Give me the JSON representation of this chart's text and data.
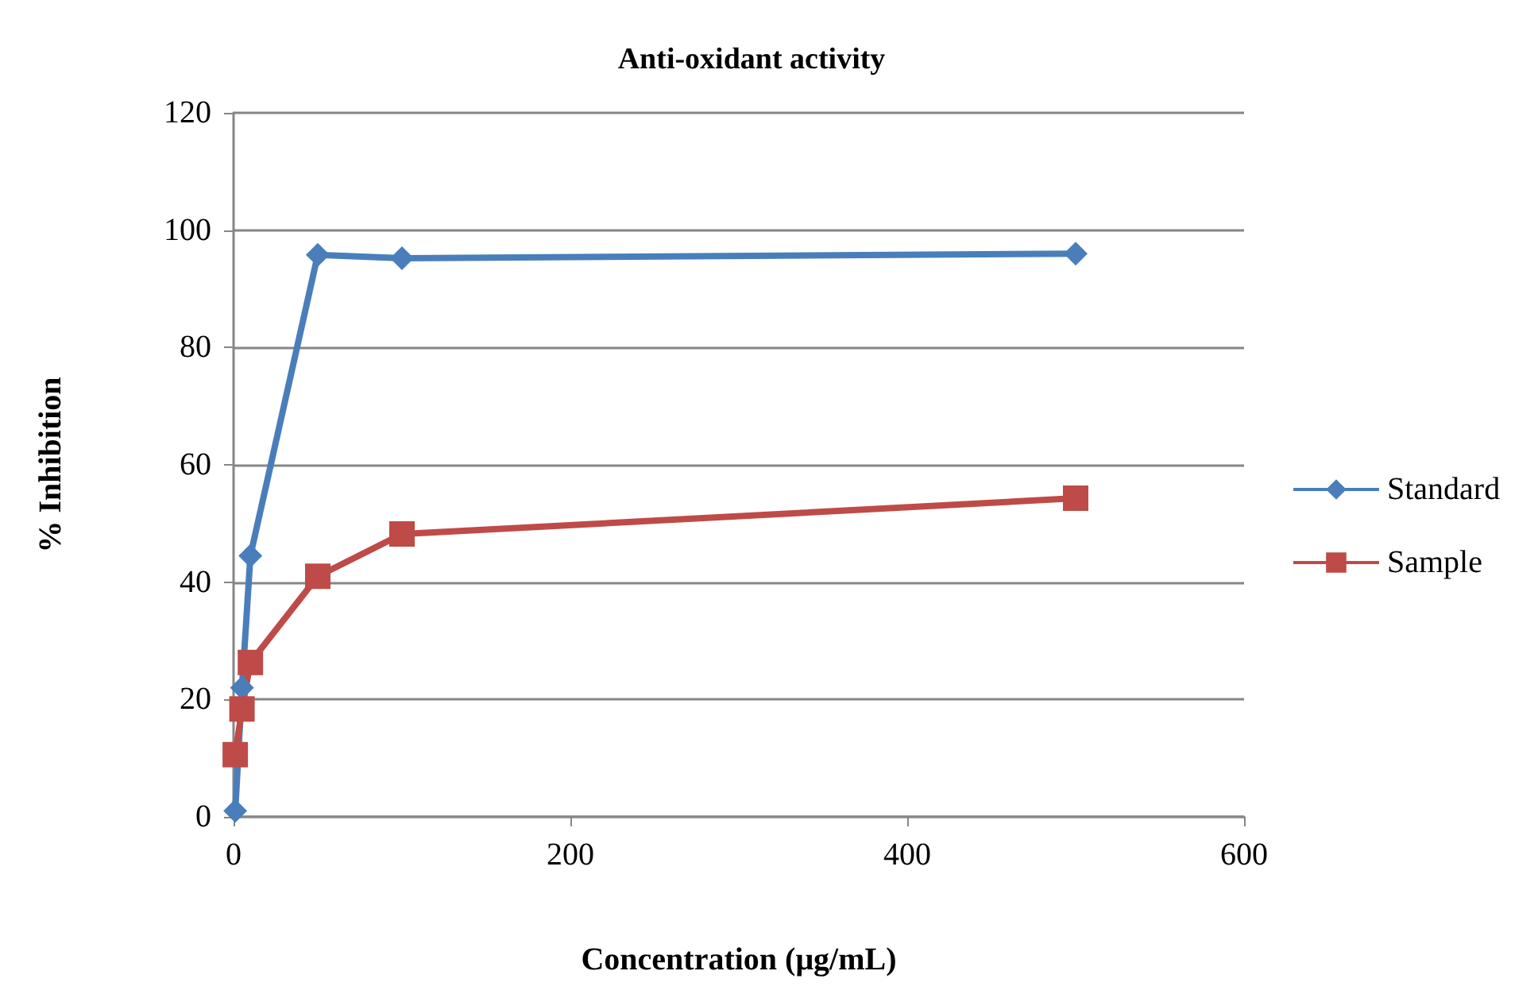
{
  "chart_data": {
    "type": "line",
    "title": "Anti-oxidant activity",
    "xlabel": "Concentration (μg/mL)",
    "ylabel": "% Inhibition",
    "series": [
      {
        "name": "Standard",
        "color": "#4a7ebb",
        "x": [
          1,
          5,
          10,
          50,
          100,
          500
        ],
        "values": [
          1,
          22,
          44.5,
          95.8,
          95.2,
          96
        ],
        "marker": "diamond"
      },
      {
        "name": "Sample",
        "color": "#be4b48",
        "x": [
          1,
          5,
          10,
          50,
          100,
          500
        ],
        "values": [
          10.6,
          18.4,
          26.3,
          41,
          48.2,
          54.3
        ],
        "marker": "square"
      }
    ],
    "xlim": [
      0,
      600
    ],
    "xticks": [
      0,
      200,
      400,
      600
    ],
    "ylim": [
      0,
      120
    ],
    "yticks": [
      0,
      20,
      40,
      60,
      80,
      100,
      120
    ],
    "grid": "y",
    "legend": "right",
    "line_style": "solid"
  }
}
